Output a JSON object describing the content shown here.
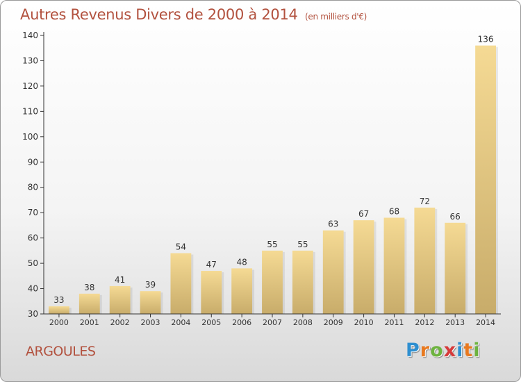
{
  "title": "Autres Revenus Divers de 2000 à 2014",
  "title_unit": "(en milliers d'€)",
  "commune": "ARGOULES",
  "logo": {
    "letters": [
      "P",
      "r",
      "o",
      "x",
      "i",
      "t",
      "i"
    ],
    "colors": [
      "#2e8fd0",
      "#e8791f",
      "#6db33f",
      "#d63a3a",
      "#2e8fd0",
      "#e8791f",
      "#6db33f"
    ]
  },
  "colors": {
    "title": "#b2513e",
    "bar_light": "#f5da94",
    "bar_dark": "#c8ac6a",
    "axis": "#333333"
  },
  "chart_data": {
    "type": "bar",
    "categories": [
      "2000",
      "2001",
      "2002",
      "2003",
      "2004",
      "2005",
      "2006",
      "2007",
      "2008",
      "2009",
      "2010",
      "2011",
      "2012",
      "2013",
      "2014"
    ],
    "values": [
      33,
      38,
      41,
      39,
      54,
      47,
      48,
      55,
      55,
      63,
      67,
      68,
      72,
      66,
      136
    ],
    "ylim": [
      30,
      140
    ],
    "yticks": [
      30,
      40,
      50,
      60,
      70,
      80,
      90,
      100,
      110,
      120,
      130,
      140
    ],
    "xlabel": "",
    "ylabel": "",
    "grid": false,
    "legend": false
  }
}
